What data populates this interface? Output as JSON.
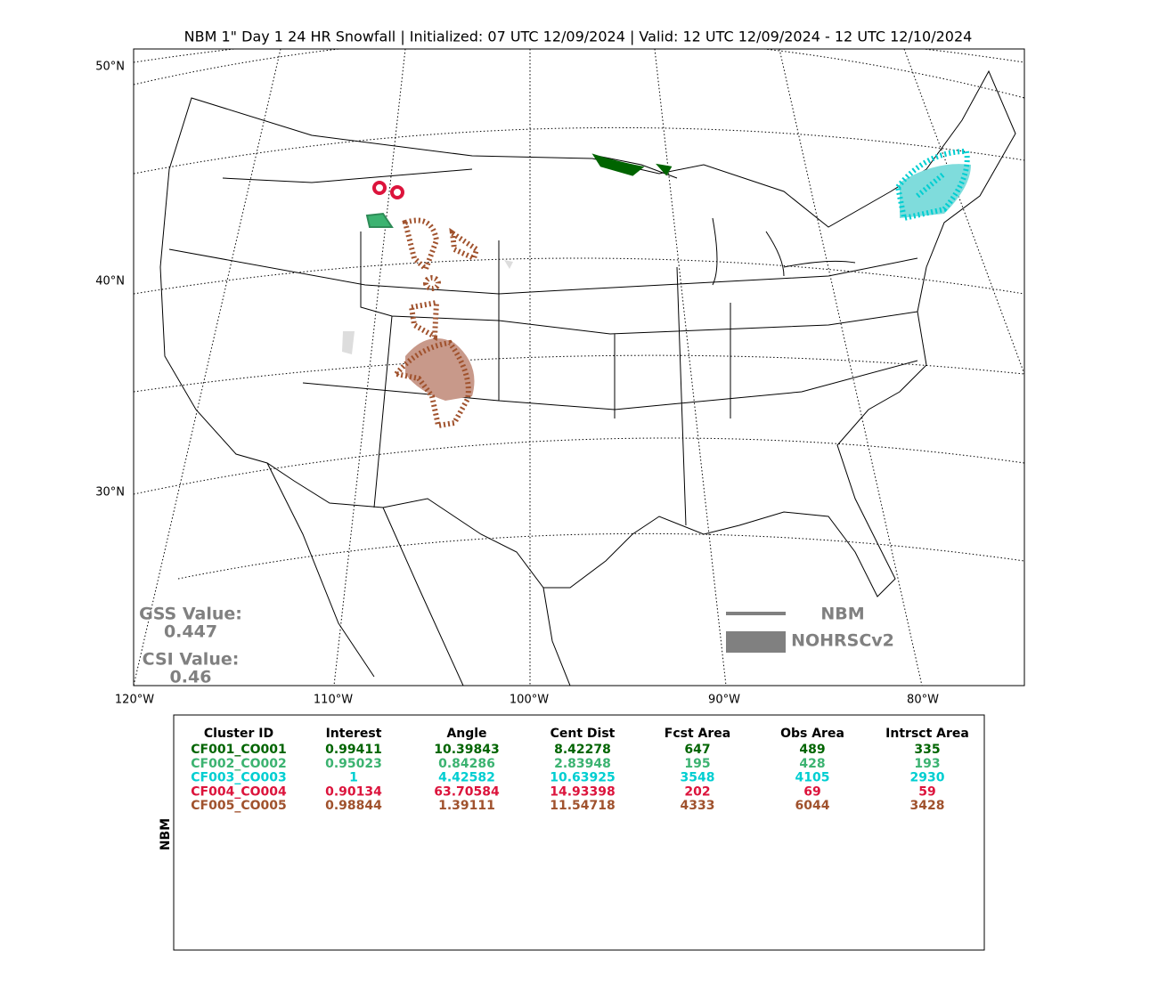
{
  "title": "NBM 1\" Day 1 24 HR Snowfall | Initialized: 07 UTC 12/09/2024 | Valid: 12 UTC 12/09/2024 - 12 UTC 12/10/2024",
  "map": {
    "lat_labels": [
      "50°N",
      "40°N",
      "30°N"
    ],
    "lon_labels": [
      "120°W",
      "110°W",
      "100°W",
      "90°W",
      "80°W"
    ],
    "gss_label": "GSS Value:",
    "gss_value": "0.447",
    "csi_label": "CSI Value:",
    "csi_value": "0.46",
    "legend": [
      "NBM",
      "NOHRSCv2"
    ]
  },
  "table": {
    "side_label": "NBM",
    "header": [
      "Cluster ID",
      "Interest",
      "Angle",
      "Cent Dist",
      "Fcst Area",
      "Obs Area",
      "Intrsct Area"
    ],
    "rows": [
      {
        "color": "#006400",
        "cells": [
          "CF001_CO001",
          "0.99411",
          "10.39843",
          "8.42278",
          "647",
          "489",
          "335"
        ]
      },
      {
        "color": "#3cb371",
        "cells": [
          "CF002_CO002",
          "0.95023",
          "0.84286",
          "2.83948",
          "195",
          "428",
          "193"
        ]
      },
      {
        "color": "#00ced1",
        "cells": [
          "CF003_CO003",
          "1",
          "4.42582",
          "10.63925",
          "3548",
          "4105",
          "2930"
        ]
      },
      {
        "color": "#dc143c",
        "cells": [
          "CF004_CO004",
          "0.90134",
          "63.70584",
          "14.93398",
          "202",
          "69",
          "59"
        ]
      },
      {
        "color": "#a0522d",
        "cells": [
          "CF005_CO005",
          "0.98844",
          "1.39111",
          "11.54718",
          "4333",
          "6044",
          "3428"
        ]
      }
    ]
  }
}
